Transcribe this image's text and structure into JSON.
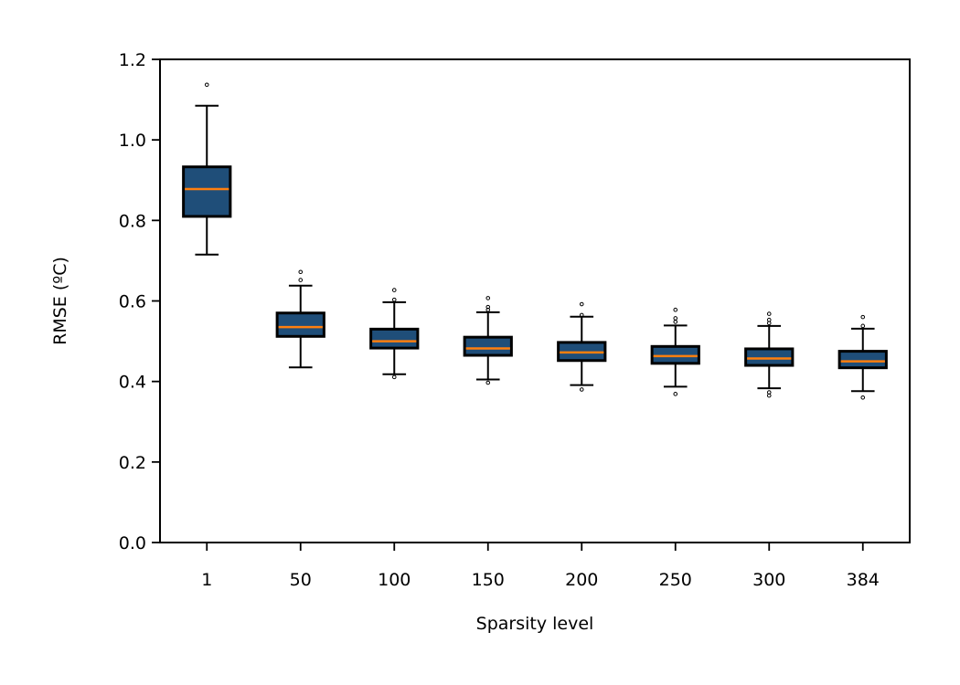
{
  "chart_data": {
    "type": "box",
    "xlabel": "Sparsity level",
    "ylabel": "RMSE (ºC)",
    "ylim": [
      0,
      1.2
    ],
    "yticks": [
      "0.0",
      "0.2",
      "0.4",
      "0.6",
      "0.8",
      "1.0",
      "1.2"
    ],
    "categories": [
      "1",
      "50",
      "100",
      "150",
      "200",
      "250",
      "300",
      "384"
    ],
    "grid": false,
    "colors": {
      "box_fill": "#1f4e79",
      "median": "#ff7f0e",
      "edge": "#000000"
    },
    "boxes": [
      {
        "category": "1",
        "whisker_low": 0.715,
        "q1": 0.81,
        "median": 0.878,
        "q3": 0.933,
        "whisker_high": 1.085,
        "outliers": [
          1.137
        ]
      },
      {
        "category": "50",
        "whisker_low": 0.435,
        "q1": 0.512,
        "median": 0.535,
        "q3": 0.57,
        "whisker_high": 0.638,
        "outliers": [
          0.652,
          0.672
        ]
      },
      {
        "category": "100",
        "whisker_low": 0.418,
        "q1": 0.483,
        "median": 0.5,
        "q3": 0.53,
        "whisker_high": 0.597,
        "outliers": [
          0.411,
          0.603,
          0.627
        ]
      },
      {
        "category": "150",
        "whisker_low": 0.405,
        "q1": 0.465,
        "median": 0.482,
        "q3": 0.51,
        "whisker_high": 0.572,
        "outliers": [
          0.397,
          0.578,
          0.585,
          0.607
        ]
      },
      {
        "category": "200",
        "whisker_low": 0.391,
        "q1": 0.452,
        "median": 0.472,
        "q3": 0.497,
        "whisker_high": 0.561,
        "outliers": [
          0.38,
          0.565,
          0.592
        ]
      },
      {
        "category": "250",
        "whisker_low": 0.387,
        "q1": 0.445,
        "median": 0.463,
        "q3": 0.487,
        "whisker_high": 0.539,
        "outliers": [
          0.369,
          0.548,
          0.557,
          0.578
        ]
      },
      {
        "category": "300",
        "whisker_low": 0.383,
        "q1": 0.44,
        "median": 0.457,
        "q3": 0.481,
        "whisker_high": 0.538,
        "outliers": [
          0.365,
          0.373,
          0.545,
          0.553,
          0.568
        ]
      },
      {
        "category": "384",
        "whisker_low": 0.376,
        "q1": 0.434,
        "median": 0.45,
        "q3": 0.475,
        "whisker_high": 0.531,
        "outliers": [
          0.36,
          0.538,
          0.56
        ]
      }
    ]
  }
}
